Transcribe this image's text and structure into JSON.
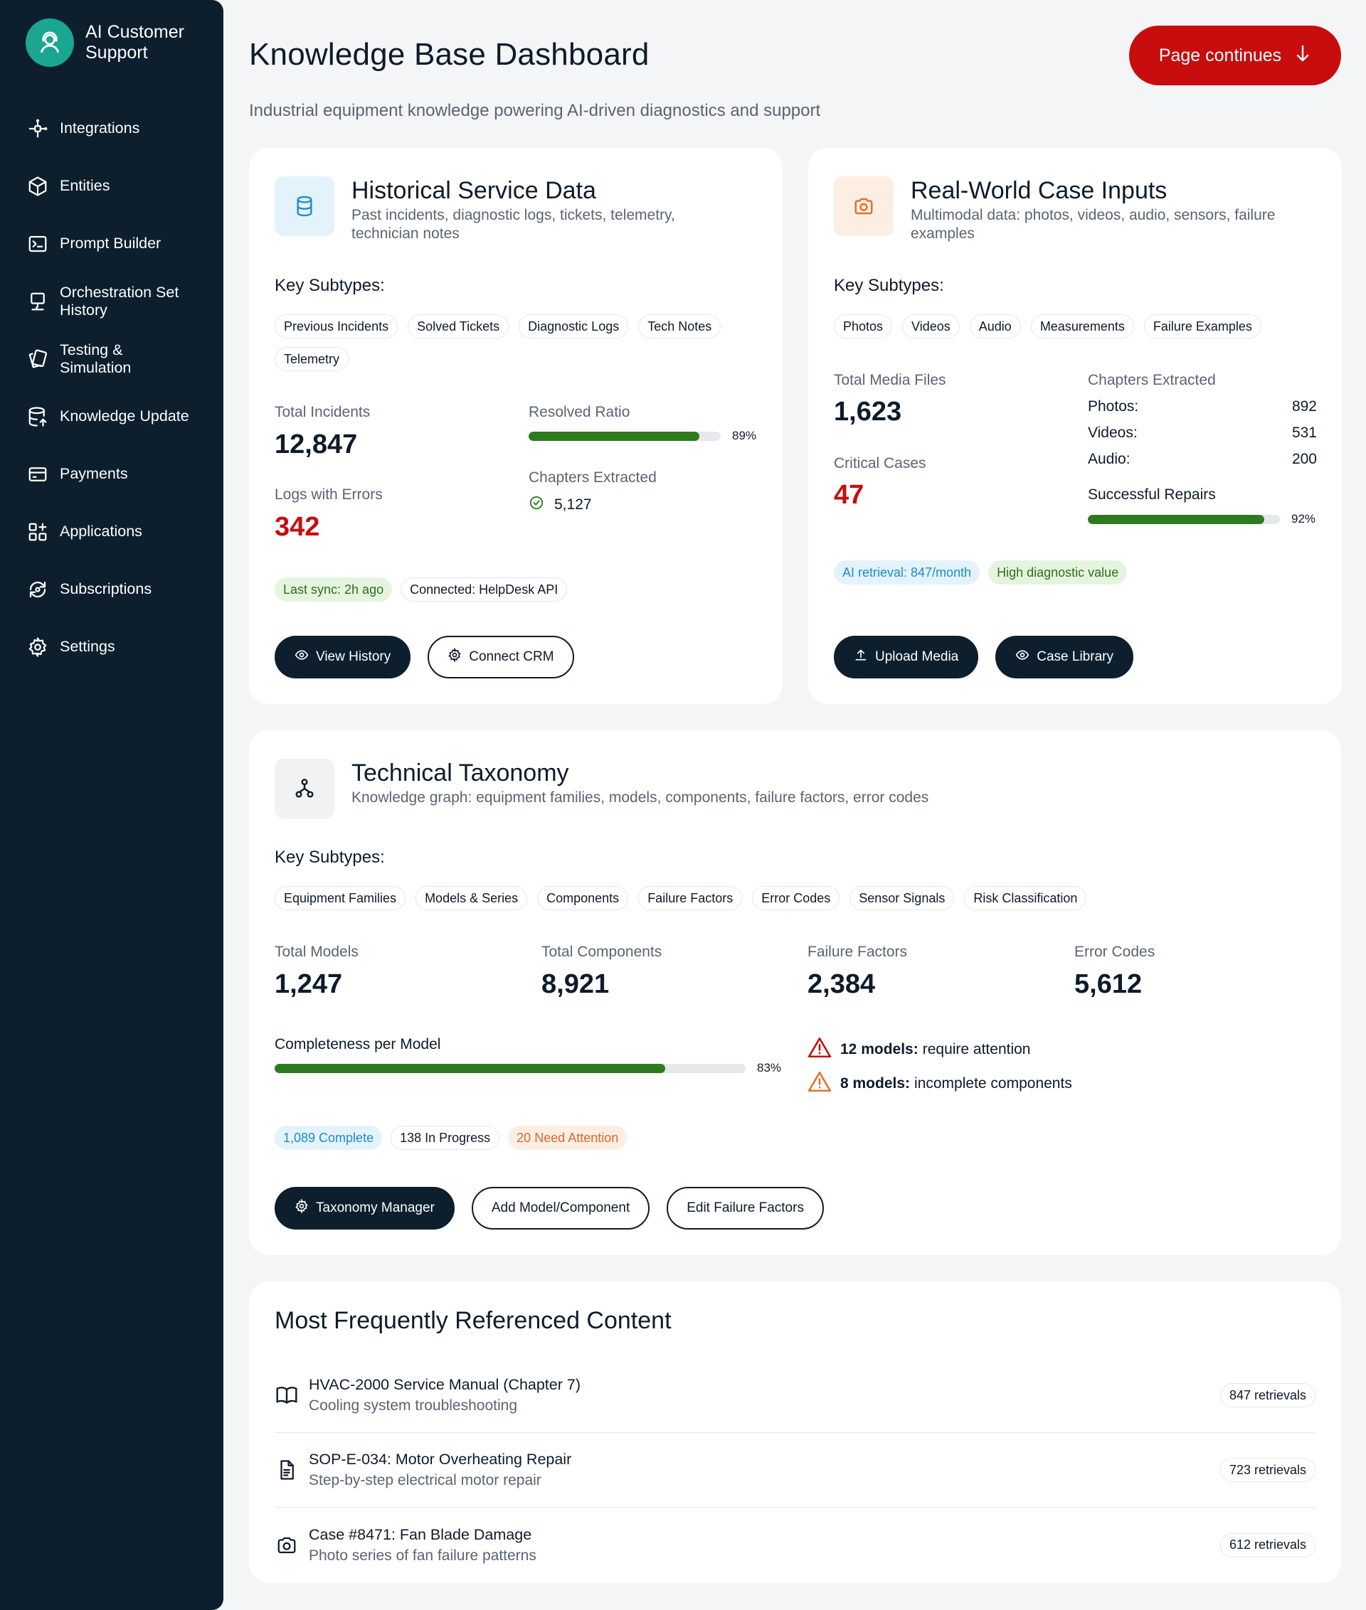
{
  "brand": {
    "name_line1": "AI Customer",
    "name_line2": "Support"
  },
  "sidebar": {
    "items": [
      {
        "label": "Integrations",
        "icon": "integrations-icon"
      },
      {
        "label": "Entities",
        "icon": "cube-icon"
      },
      {
        "label": "Prompt Builder",
        "icon": "terminal-icon"
      },
      {
        "label_line1": "Orchestration Set",
        "label_line2": "History",
        "icon": "monitor-icon"
      },
      {
        "label_line1": "Testing &",
        "label_line2": "Simulation",
        "icon": "cards-icon"
      },
      {
        "label": "Knowledge Update",
        "icon": "database-upload-icon"
      },
      {
        "label": "Payments",
        "icon": "credit-card-icon"
      },
      {
        "label": "Applications",
        "icon": "apps-grid-icon"
      },
      {
        "label": "Subscriptions",
        "icon": "refresh-icon"
      },
      {
        "label": "Settings",
        "icon": "gear-icon"
      }
    ]
  },
  "header": {
    "title": "Knowledge Base Dashboard",
    "subtitle": "Industrial equipment knowledge powering AI-driven diagnostics and support",
    "continue_label": "Page continues"
  },
  "historical": {
    "title": "Historical Service Data",
    "desc_line1": "Past incidents, diagnostic logs, tickets, telemetry,",
    "desc_line2": "technician notes",
    "subtypes_label": "Key Subtypes:",
    "chips": [
      "Previous Incidents",
      "Solved Tickets",
      "Diagnostic Logs",
      "Tech Notes",
      "Telemetry"
    ],
    "total_incidents_label": "Total Incidents",
    "total_incidents": "12,847",
    "resolved_label": "Resolved Ratio",
    "resolved_pct_text": "89%",
    "resolved_fraction": 0.89,
    "logs_errors_label": "Logs with Errors",
    "logs_errors": "342",
    "chapters_label": "Chapters Extracted",
    "chapters": "5,127",
    "badge_sync": "Last sync: 2h ago",
    "badge_connected": "Connected: HelpDesk API",
    "btn_view": "View History",
    "btn_connect": "Connect CRM"
  },
  "realworld": {
    "title": "Real-World Case Inputs",
    "desc_line1": "Multimodal data: photos, videos, audio, sensors, failure",
    "desc_line2": "examples",
    "subtypes_label": "Key Subtypes:",
    "chips": [
      "Photos",
      "Videos",
      "Audio",
      "Measurements",
      "Failure Examples"
    ],
    "total_media_label": "Total Media Files",
    "total_media": "1,623",
    "critical_label": "Critical Cases",
    "critical": "47",
    "chapters_label": "Chapters Extracted",
    "photos_k": "Photos:",
    "photos_v": "892",
    "videos_k": "Videos:",
    "videos_v": "531",
    "audio_k": "Audio:",
    "audio_v": "200",
    "repairs_label": "Successful Repairs",
    "repairs_pct_text": "92%",
    "repairs_fraction": 0.92,
    "badge_retrieval": "AI retrieval: 847/month",
    "badge_value": "High diagnostic value",
    "btn_upload": "Upload Media",
    "btn_library": "Case Library"
  },
  "taxonomy": {
    "title": "Technical Taxonomy",
    "desc": "Knowledge graph: equipment families, models, components, failure factors, error codes",
    "subtypes_label": "Key Subtypes:",
    "chips": [
      "Equipment Families",
      "Models & Series",
      "Components",
      "Failure Factors",
      "Error Codes",
      "Sensor Signals",
      "Risk Classification"
    ],
    "total_models_label": "Total Models",
    "total_models": "1,247",
    "total_components_label": "Total Components",
    "total_components": "8,921",
    "failure_factors_label": "Failure Factors",
    "failure_factors": "2,384",
    "error_codes_label": "Error Codes",
    "error_codes": "5,612",
    "completeness_label": "Completeness per Model",
    "completeness_pct_text": "83%",
    "completeness_fraction": 0.83,
    "warn1_bold": "12 models:",
    "warn1_text": "require attention",
    "warn2_bold": "8 models:",
    "warn2_text": "incomplete components",
    "badge_complete": "1,089 Complete",
    "badge_progress": "138 In Progress",
    "badge_attention": "20 Need Attention",
    "btn_manager": "Taxonomy Manager",
    "btn_add": "Add Model/Component",
    "btn_edit": "Edit Failure Factors"
  },
  "references": {
    "title": "Most Frequently Referenced Content",
    "items": [
      {
        "name": "HVAC-2000 Service Manual (Chapter 7)",
        "desc": "Cooling system troubleshooting",
        "count": "847 retrievals",
        "icon": "book-icon"
      },
      {
        "name": "SOP-E-034: Motor Overheating Repair",
        "desc": "Step-by-step electrical motor repair",
        "count": "723 retrievals",
        "icon": "document-icon"
      },
      {
        "name": "Case #8471: Fan Blade Damage",
        "desc": "Photo series of fan failure patterns",
        "count": "612 retrievals",
        "icon": "camera-icon"
      }
    ]
  },
  "colors": {
    "sidebar": "#0d1f2d",
    "accent_red": "#c70d0d",
    "progress_green": "#2d7a1f",
    "brand_teal": "#1aa690"
  }
}
